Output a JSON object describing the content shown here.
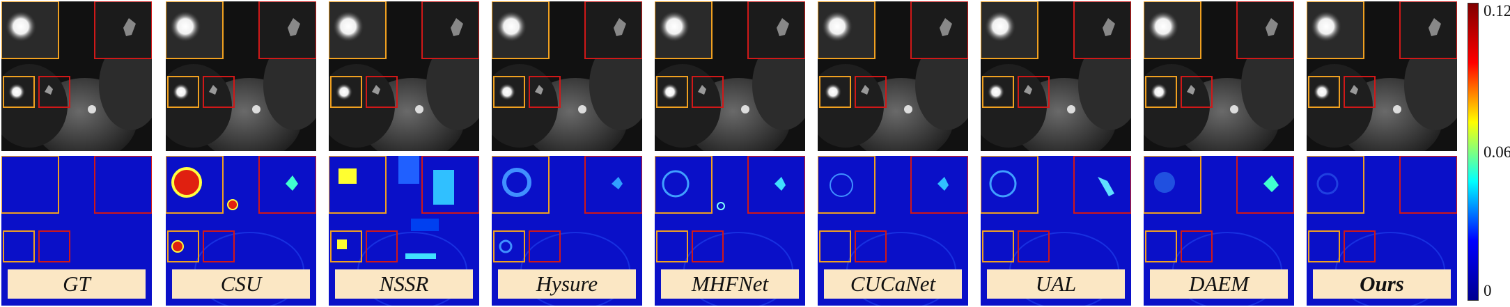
{
  "methods": [
    {
      "label": "GT",
      "bold": false,
      "err": "none"
    },
    {
      "label": "CSU",
      "bold": false,
      "err": "csu"
    },
    {
      "label": "NSSR",
      "bold": false,
      "err": "nssr"
    },
    {
      "label": "Hysure",
      "bold": false,
      "err": "ring"
    },
    {
      "label": "MHFNet",
      "bold": false,
      "err": "ring2"
    },
    {
      "label": "CUCaNet",
      "bold": false,
      "err": "ring3"
    },
    {
      "label": "UAL",
      "bold": false,
      "err": "ring4"
    },
    {
      "label": "DAEM",
      "bold": false,
      "err": "ring5"
    },
    {
      "label": "Ours",
      "bold": true,
      "err": "faint"
    }
  ],
  "colorbar": {
    "ticks": [
      "0.12",
      "0.06",
      "0"
    ],
    "colors": [
      "#800000",
      "#ff0000",
      "#ffff00",
      "#00ffff",
      "#0000ff",
      "#00008f"
    ]
  },
  "zoom_colors": {
    "orange": "#f0a020",
    "red": "#d01818"
  }
}
